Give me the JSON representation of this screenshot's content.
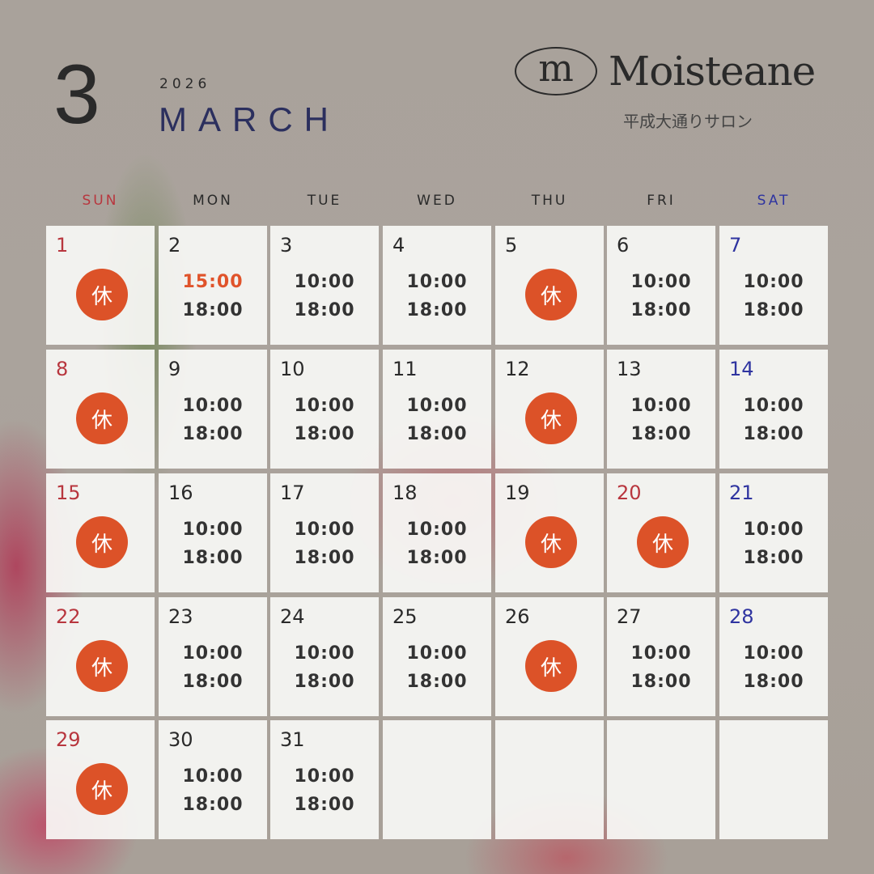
{
  "header": {
    "month_number": "3",
    "year": "2026",
    "month_name": "MARCH",
    "brand": "Moisteane",
    "brand_mark": "m",
    "salon": "平成大通りサロン"
  },
  "colors": {
    "sunday": "#b8363e",
    "saturday": "#2f34a0",
    "closed_badge": "#dc5228",
    "highlight_time": "#e0532a",
    "month_name": "#2b2f5e"
  },
  "weekdays": [
    "SUN",
    "MON",
    "TUE",
    "WED",
    "THU",
    "FRI",
    "SAT"
  ],
  "closed_label": "休",
  "days": [
    {
      "d": "1",
      "closed": true,
      "red": true
    },
    {
      "d": "2",
      "open": "15:00",
      "close": "18:00",
      "hl": true
    },
    {
      "d": "3",
      "open": "10:00",
      "close": "18:00"
    },
    {
      "d": "4",
      "open": "10:00",
      "close": "18:00"
    },
    {
      "d": "5",
      "closed": true
    },
    {
      "d": "6",
      "open": "10:00",
      "close": "18:00"
    },
    {
      "d": "7",
      "open": "10:00",
      "close": "18:00",
      "blue": true
    },
    {
      "d": "8",
      "closed": true,
      "red": true
    },
    {
      "d": "9",
      "open": "10:00",
      "close": "18:00"
    },
    {
      "d": "10",
      "open": "10:00",
      "close": "18:00"
    },
    {
      "d": "11",
      "open": "10:00",
      "close": "18:00"
    },
    {
      "d": "12",
      "closed": true
    },
    {
      "d": "13",
      "open": "10:00",
      "close": "18:00"
    },
    {
      "d": "14",
      "open": "10:00",
      "close": "18:00",
      "blue": true
    },
    {
      "d": "15",
      "closed": true,
      "red": true
    },
    {
      "d": "16",
      "open": "10:00",
      "close": "18:00"
    },
    {
      "d": "17",
      "open": "10:00",
      "close": "18:00"
    },
    {
      "d": "18",
      "open": "10:00",
      "close": "18:00"
    },
    {
      "d": "19",
      "closed": true
    },
    {
      "d": "20",
      "closed": true,
      "red": true
    },
    {
      "d": "21",
      "open": "10:00",
      "close": "18:00",
      "blue": true
    },
    {
      "d": "22",
      "closed": true,
      "red": true
    },
    {
      "d": "23",
      "open": "10:00",
      "close": "18:00"
    },
    {
      "d": "24",
      "open": "10:00",
      "close": "18:00"
    },
    {
      "d": "25",
      "open": "10:00",
      "close": "18:00"
    },
    {
      "d": "26",
      "closed": true
    },
    {
      "d": "27",
      "open": "10:00",
      "close": "18:00"
    },
    {
      "d": "28",
      "open": "10:00",
      "close": "18:00",
      "blue": true
    },
    {
      "d": "29",
      "closed": true,
      "red": true
    },
    {
      "d": "30",
      "open": "10:00",
      "close": "18:00"
    },
    {
      "d": "31",
      "open": "10:00",
      "close": "18:00"
    },
    {
      "d": ""
    },
    {
      "d": ""
    },
    {
      "d": ""
    },
    {
      "d": ""
    }
  ]
}
